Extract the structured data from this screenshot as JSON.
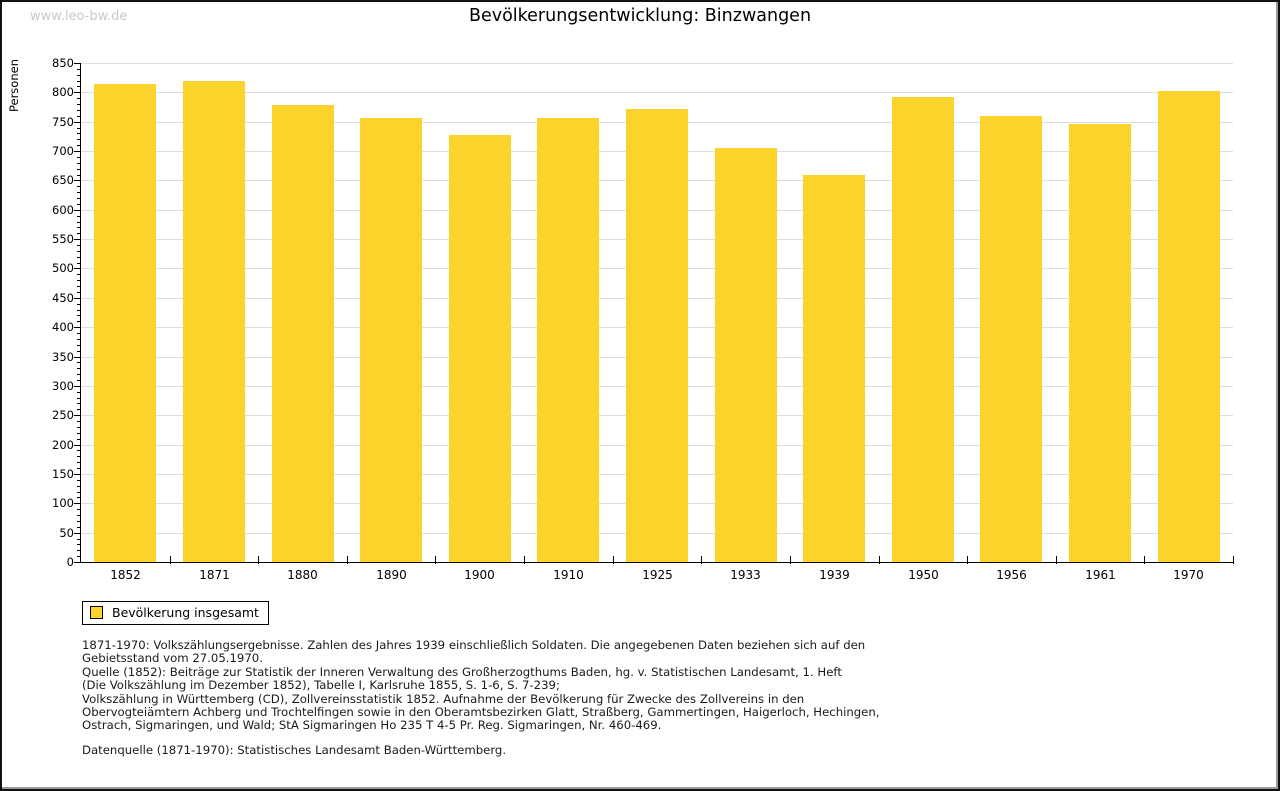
{
  "page": {
    "watermark": "www.leo-bw.de",
    "title": "Bevölkerungsentwicklung: Binzwangen"
  },
  "chart_data": {
    "type": "bar",
    "title": "Bevölkerungsentwicklung: Binzwangen",
    "xlabel": "",
    "ylabel": "Personen",
    "categories": [
      "1852",
      "1871",
      "1880",
      "1890",
      "1900",
      "1910",
      "1925",
      "1933",
      "1939",
      "1950",
      "1956",
      "1961",
      "1970"
    ],
    "series": [
      {
        "name": "Bevölkerung insgesamt",
        "values": [
          814,
          820,
          778,
          757,
          727,
          756,
          772,
          705,
          660,
          792,
          759,
          746,
          803
        ]
      }
    ],
    "ylim": [
      0,
      850
    ],
    "ytick_step": 50,
    "ytick_minor_step": 10,
    "grid": true,
    "legend_position": "bottom-left"
  },
  "legend": {
    "label": "Bevölkerung insgesamt"
  },
  "footer": {
    "lines": [
      "1871-1970: Volkszählungsergebnisse. Zahlen des Jahres 1939 einschließlich Soldaten. Die angegebenen Daten beziehen sich auf den",
      "Gebietsstand vom 27.05.1970.",
      "Quelle (1852): Beiträge zur Statistik der Inneren Verwaltung des Großherzogthums Baden, hg. v. Statistischen Landesamt, 1. Heft",
      "(Die Volkszählung im Dezember 1852), Tabelle I, Karlsruhe 1855, S. 1-6, S. 7-239;",
      "Volkszählung in Württemberg (CD), Zollvereinsstatistik 1852. Aufnahme der Bevölkerung für Zwecke des Zollvereins in den",
      "Obervogteiämtern Achberg und Trochtelfingen sowie in den Oberamtsbezirken Glatt, Straßberg, Gammertingen, Haigerloch, Hechingen,",
      "Ostrach, Sigmaringen, und Wald; StA Sigmaringen Ho 235 T 4-5 Pr. Reg. Sigmaringen, Nr. 460-469."
    ],
    "datasource": "Datenquelle (1871-1970): Statistisches Landesamt Baden-Württemberg."
  },
  "colors": {
    "bar": "#FCD32B",
    "grid": "#DEDEDE",
    "axis": "#000000",
    "watermark": "#C9C9C9"
  }
}
